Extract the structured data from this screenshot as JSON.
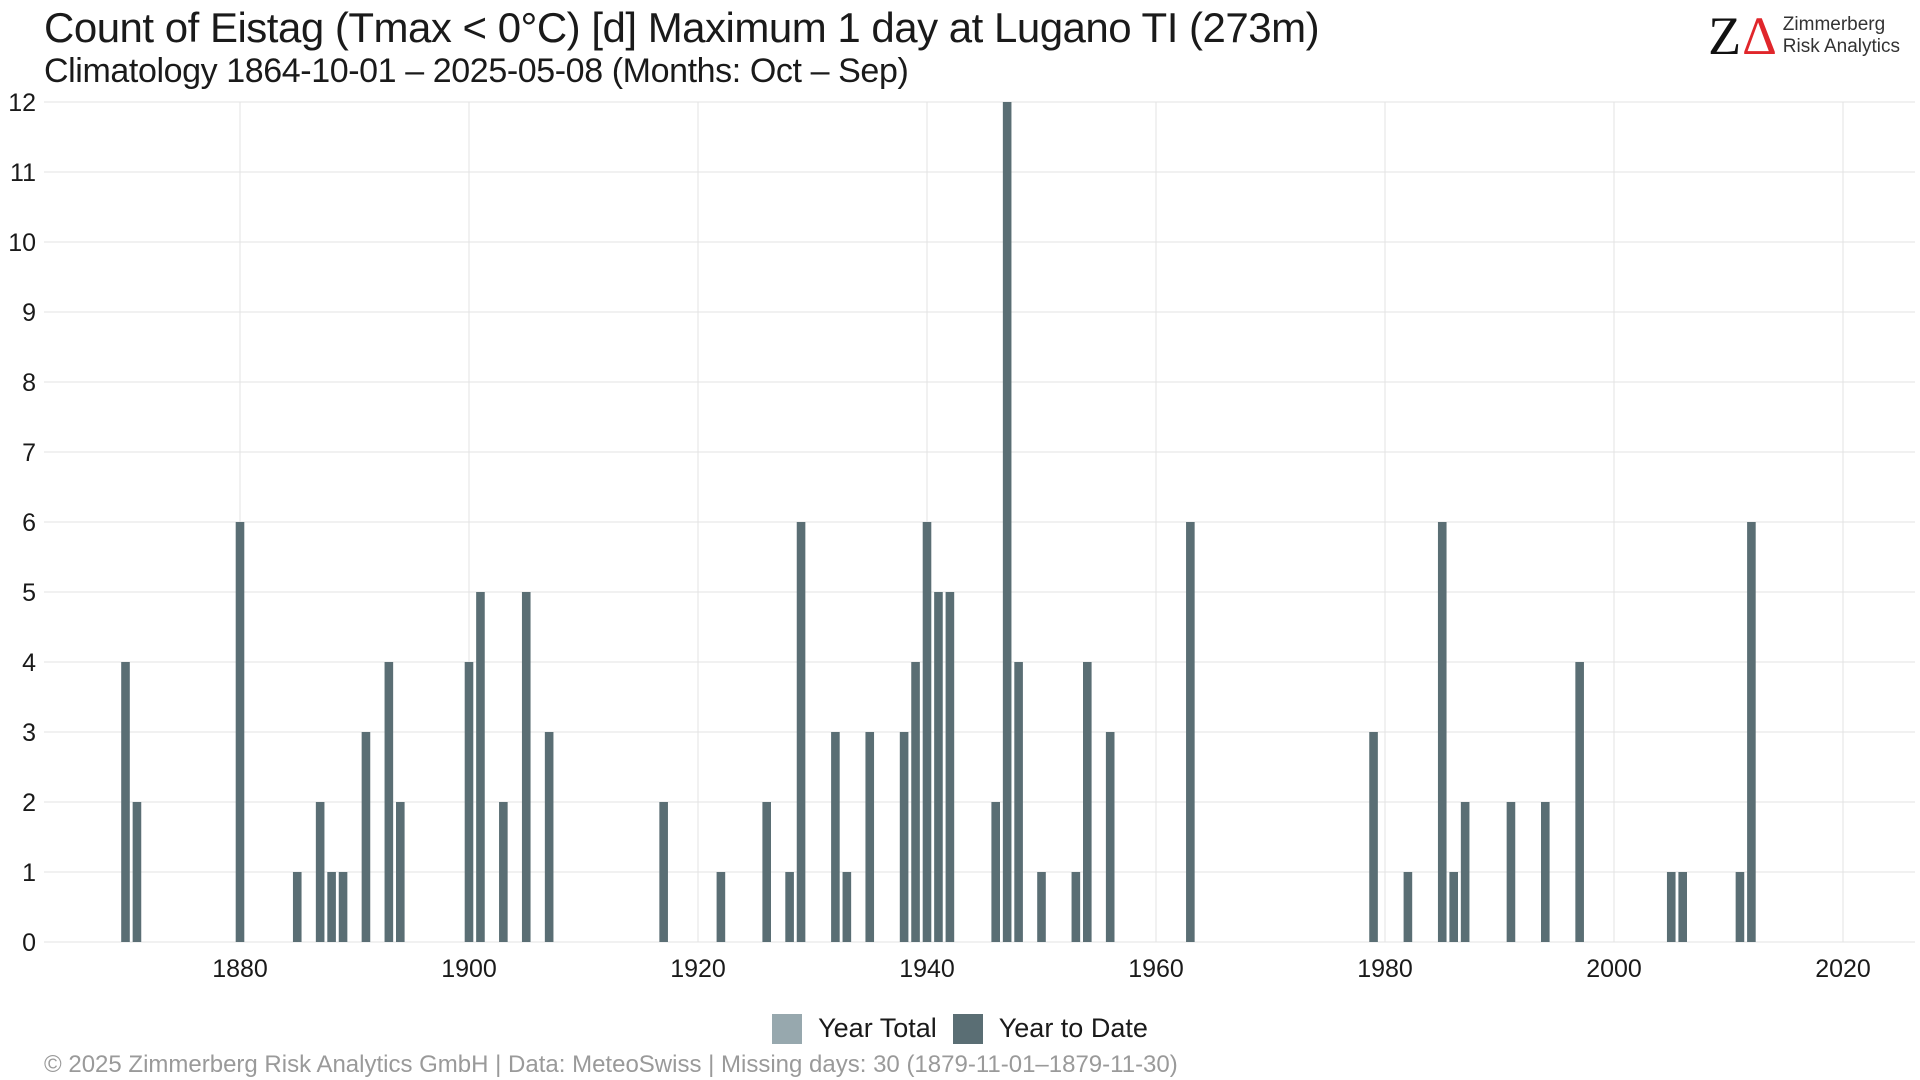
{
  "header": {
    "title": "Count of Eistag (Tmax < 0°C) [d] Maximum 1 day at Lugano  TI (273m)",
    "subtitle": "Climatology 1864-10-01 – 2025-05-08 (Months: Oct – Sep)"
  },
  "logo": {
    "line1": "Zimmerberg",
    "line2": "Risk Analytics",
    "accent_color": "#e0262b"
  },
  "footer": {
    "text": "©  2025 Zimmerberg Risk Analytics GmbH | Data: MeteoSwiss | Missing days: 30 (1879-11-01–1879-11-30)"
  },
  "chart_data": {
    "type": "bar",
    "title": "Count of Eistag (Tmax < 0°C) [d] Maximum 1 day at Lugano  TI (273m)",
    "subtitle": "Climatology 1864-10-01 – 2025-05-08 (Months: Oct – Sep)",
    "xlabel": "",
    "ylabel": "",
    "xlim": [
      1864,
      2027
    ],
    "ylim": [
      0,
      12
    ],
    "x_ticks": [
      1880,
      1900,
      1920,
      1940,
      1960,
      1980,
      2000,
      2020
    ],
    "y_ticks": [
      0,
      1,
      2,
      3,
      4,
      5,
      6,
      7,
      8,
      9,
      10,
      11,
      12
    ],
    "grid": true,
    "legend_position": "bottom",
    "colors": {
      "year_total": "#97a8ae",
      "year_to_date": "#5a6e74",
      "grid": "#e3e3e3"
    },
    "series": [
      {
        "name": "Year Total",
        "points": []
      },
      {
        "name": "Year to Date",
        "points": [
          {
            "x": 1870,
            "y": 4
          },
          {
            "x": 1871,
            "y": 2
          },
          {
            "x": 1880,
            "y": 6
          },
          {
            "x": 1885,
            "y": 1
          },
          {
            "x": 1887,
            "y": 2
          },
          {
            "x": 1888,
            "y": 1
          },
          {
            "x": 1889,
            "y": 1
          },
          {
            "x": 1891,
            "y": 3
          },
          {
            "x": 1893,
            "y": 4
          },
          {
            "x": 1894,
            "y": 2
          },
          {
            "x": 1900,
            "y": 4
          },
          {
            "x": 1901,
            "y": 5
          },
          {
            "x": 1903,
            "y": 2
          },
          {
            "x": 1905,
            "y": 5
          },
          {
            "x": 1907,
            "y": 3
          },
          {
            "x": 1917,
            "y": 2
          },
          {
            "x": 1922,
            "y": 1
          },
          {
            "x": 1926,
            "y": 2
          },
          {
            "x": 1928,
            "y": 1
          },
          {
            "x": 1929,
            "y": 6
          },
          {
            "x": 1932,
            "y": 3
          },
          {
            "x": 1933,
            "y": 1
          },
          {
            "x": 1935,
            "y": 3
          },
          {
            "x": 1938,
            "y": 3
          },
          {
            "x": 1939,
            "y": 4
          },
          {
            "x": 1940,
            "y": 6
          },
          {
            "x": 1941,
            "y": 5
          },
          {
            "x": 1942,
            "y": 5
          },
          {
            "x": 1946,
            "y": 2
          },
          {
            "x": 1947,
            "y": 12
          },
          {
            "x": 1948,
            "y": 4
          },
          {
            "x": 1950,
            "y": 1
          },
          {
            "x": 1953,
            "y": 1
          },
          {
            "x": 1954,
            "y": 4
          },
          {
            "x": 1956,
            "y": 3
          },
          {
            "x": 1963,
            "y": 6
          },
          {
            "x": 1979,
            "y": 3
          },
          {
            "x": 1982,
            "y": 1
          },
          {
            "x": 1985,
            "y": 6
          },
          {
            "x": 1986,
            "y": 1
          },
          {
            "x": 1987,
            "y": 2
          },
          {
            "x": 1991,
            "y": 2
          },
          {
            "x": 1994,
            "y": 2
          },
          {
            "x": 1997,
            "y": 4
          },
          {
            "x": 2005,
            "y": 1
          },
          {
            "x": 2006,
            "y": 1
          },
          {
            "x": 2011,
            "y": 1
          },
          {
            "x": 2012,
            "y": 6
          }
        ]
      }
    ]
  }
}
